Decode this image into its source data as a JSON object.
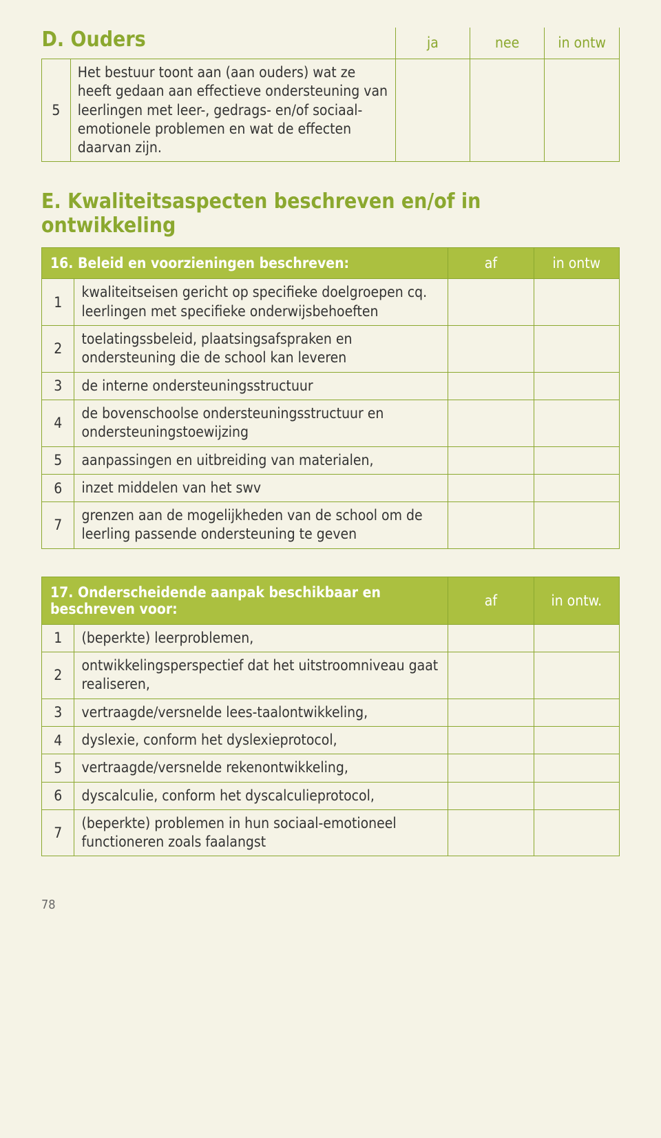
{
  "colors": {
    "accent": "#8ba82f",
    "header_bg": "#abc040",
    "page_bg": "#f5f3e6",
    "text": "#333333"
  },
  "section_d": {
    "title": "D. Ouders",
    "cols": [
      "ja",
      "nee",
      "in ontw"
    ],
    "row": {
      "num": "5",
      "text": "Het bestuur toont aan (aan ouders) wat ze heeft gedaan aan effectieve ondersteuning van leerlingen met leer-, gedrags- en/of sociaal-emotionele problemen en wat de effecten daarvan zijn."
    }
  },
  "section_e_title": "E. Kwaliteitsaspecten beschreven en/of in ontwikkeling",
  "table16": {
    "header": "16. Beleid en voorzieningen beschreven:",
    "cols": [
      "af",
      "in ontw"
    ],
    "rows": [
      {
        "num": "1",
        "text": "kwaliteitseisen gericht op specifieke doelgroepen cq. leerlingen met specifieke onderwijsbehoeften"
      },
      {
        "num": "2",
        "text": "toelatingssbeleid, plaatsingsafspraken en ondersteuning die de school kan leveren"
      },
      {
        "num": "3",
        "text": "de interne ondersteuningsstructuur"
      },
      {
        "num": "4",
        "text": "de bovenschoolse ondersteuningsstructuur en ondersteuningstoewijzing"
      },
      {
        "num": "5",
        "text": "aanpassingen en uitbreiding van materialen,"
      },
      {
        "num": "6",
        "text": "inzet middelen van het swv"
      },
      {
        "num": "7",
        "text": "grenzen aan de mogelijkheden van de school om de leerling passende ondersteuning te geven"
      }
    ]
  },
  "table17": {
    "header": "17. Onderscheidende aanpak beschikbaar en beschreven voor:",
    "cols": [
      "af",
      "in ontw."
    ],
    "rows": [
      {
        "num": "1",
        "text": "(beperkte) leerproblemen,"
      },
      {
        "num": "2",
        "text": "ontwikkelingsperspectief dat het uitstroomniveau gaat realiseren,"
      },
      {
        "num": "3",
        "text": "vertraagde/versnelde lees-taalontwikkeling,"
      },
      {
        "num": "4",
        "text": "dyslexie, conform het dyslexieprotocol,"
      },
      {
        "num": "5",
        "text": "vertraagde/versnelde rekenontwikkeling,"
      },
      {
        "num": "6",
        "text": "dyscalculie, conform het dyscalculieprotocol,"
      },
      {
        "num": "7",
        "text": "(beperkte) problemen in hun sociaal-emotioneel functioneren zoals faalangst"
      }
    ]
  },
  "page_number": "78"
}
